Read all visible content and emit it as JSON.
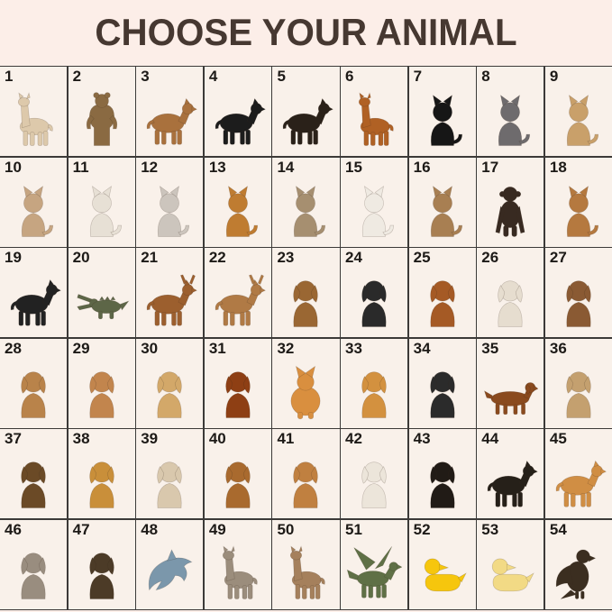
{
  "title": "CHOOSE YOUR ANIMAL",
  "colors": {
    "page_background": "#fceee8",
    "cell_background": "#f9f1ea",
    "grid_line": "#3c3a38",
    "number_text": "#1d1a17",
    "title_text": "#463831"
  },
  "grid": {
    "columns": 9,
    "rows": 6,
    "cell_count": 54
  },
  "cells": [
    {
      "number": 1,
      "animal": "alpaca",
      "icon": "alpaca-icon",
      "shape": "llama",
      "color": "#ddc9ab"
    },
    {
      "number": 2,
      "animal": "standing brown bear",
      "icon": "standing-bear-icon",
      "shape": "bearstand",
      "color": "#8a6a42"
    },
    {
      "number": 3,
      "animal": "brown bear",
      "icon": "brown-bear-icon",
      "shape": "quadruped",
      "color": "#a9713d"
    },
    {
      "number": 4,
      "animal": "black panther",
      "icon": "black-panther-icon",
      "shape": "quadruped",
      "color": "#1c1c1c"
    },
    {
      "number": 5,
      "animal": "water buffalo",
      "icon": "buffalo-icon",
      "shape": "quadruped",
      "color": "#2a2119"
    },
    {
      "number": 6,
      "animal": "camel",
      "icon": "camel-icon",
      "shape": "llama",
      "color": "#b06124"
    },
    {
      "number": 7,
      "animal": "black cat",
      "icon": "black-cat-icon",
      "shape": "catsit",
      "color": "#161616"
    },
    {
      "number": 8,
      "animal": "gray british shorthair cat",
      "icon": "gray-cat-icon",
      "shape": "catsit",
      "color": "#6e6b6d"
    },
    {
      "number": 9,
      "animal": "calico cat",
      "icon": "calico-cat-icon",
      "shape": "catsit",
      "color": "#c9a06a"
    },
    {
      "number": 10,
      "animal": "brown and white cat",
      "icon": "brown-white-cat-icon",
      "shape": "catsit",
      "color": "#c6a581"
    },
    {
      "number": 11,
      "animal": "white persian cat",
      "icon": "white-persian-cat-icon",
      "shape": "catsit",
      "color": "#e7e0d5"
    },
    {
      "number": 12,
      "animal": "silver persian cat",
      "icon": "silver-persian-cat-icon",
      "shape": "catsit",
      "color": "#ccc5bd"
    },
    {
      "number": 13,
      "animal": "orange persian cat",
      "icon": "orange-persian-cat-icon",
      "shape": "catsit",
      "color": "#bf7c31"
    },
    {
      "number": 14,
      "animal": "gray tabby cat",
      "icon": "tabby-cat-icon",
      "shape": "catsit",
      "color": "#a68f70"
    },
    {
      "number": 15,
      "animal": "white cat",
      "icon": "white-cat-icon",
      "shape": "catsit",
      "color": "#efeae2"
    },
    {
      "number": 16,
      "animal": "ragdoll cat",
      "icon": "ragdoll-cat-icon",
      "shape": "catsit",
      "color": "#a87f52"
    },
    {
      "number": 17,
      "animal": "chimpanzee",
      "icon": "chimpanzee-icon",
      "shape": "monkey",
      "color": "#382a21"
    },
    {
      "number": 18,
      "animal": "cougar",
      "icon": "cougar-icon",
      "shape": "catsit",
      "color": "#b5793f"
    },
    {
      "number": 19,
      "animal": "cow",
      "icon": "cow-icon",
      "shape": "quadruped",
      "color": "#222222"
    },
    {
      "number": 20,
      "animal": "crocodile",
      "icon": "crocodile-icon",
      "shape": "croc",
      "color": "#5d6647"
    },
    {
      "number": 21,
      "animal": "reindeer with santa hat",
      "icon": "reindeer-icon",
      "shape": "deer",
      "color": "#9c5f2e"
    },
    {
      "number": 22,
      "animal": "gazelle",
      "icon": "gazelle-icon",
      "shape": "deer",
      "color": "#b07a45"
    },
    {
      "number": 23,
      "animal": "beagle",
      "icon": "beagle-icon",
      "shape": "dogsit",
      "color": "#9a6733"
    },
    {
      "number": 24,
      "animal": "border collie",
      "icon": "border-collie-icon",
      "shape": "dogsit",
      "color": "#2a2a2a"
    },
    {
      "number": 25,
      "animal": "boxer dog",
      "icon": "boxer-dog-icon",
      "shape": "dogsit",
      "color": "#a55a25"
    },
    {
      "number": 26,
      "animal": "white english bulldog",
      "icon": "white-bulldog-icon",
      "shape": "dogsit",
      "color": "#e6ddcf"
    },
    {
      "number": 27,
      "animal": "brindle english bulldog",
      "icon": "brindle-bulldog-icon",
      "shape": "dogsit",
      "color": "#8a5a33"
    },
    {
      "number": 28,
      "animal": "bullmastiff",
      "icon": "bullmastiff-icon",
      "shape": "dogsit",
      "color": "#b9834a"
    },
    {
      "number": 29,
      "animal": "bulldog puppy",
      "icon": "bulldog-puppy-icon",
      "shape": "dogsit",
      "color": "#c2854d"
    },
    {
      "number": 30,
      "animal": "chihuahua",
      "icon": "chihuahua-icon",
      "shape": "dogsit",
      "color": "#d3a869"
    },
    {
      "number": 31,
      "animal": "cocker spaniel",
      "icon": "cocker-spaniel-icon",
      "shape": "dogsit",
      "color": "#8e3f14"
    },
    {
      "number": 32,
      "animal": "corgi rear view",
      "icon": "corgi-rear-icon",
      "shape": "dogrear",
      "color": "#d98f3f"
    },
    {
      "number": 33,
      "animal": "corgi",
      "icon": "corgi-icon",
      "shape": "dogsit",
      "color": "#d3913f"
    },
    {
      "number": 34,
      "animal": "tricolor corgi",
      "icon": "tricolor-corgi-icon",
      "shape": "dogsit",
      "color": "#2b2b2b"
    },
    {
      "number": 35,
      "animal": "dachshund",
      "icon": "dachshund-icon",
      "shape": "dachshund",
      "color": "#8a4a1e"
    },
    {
      "number": 36,
      "animal": "french bulldog",
      "icon": "french-bulldog-icon",
      "shape": "dogsit",
      "color": "#c4a06f"
    },
    {
      "number": 37,
      "animal": "german shepherd",
      "icon": "german-shepherd-icon",
      "shape": "dogsit",
      "color": "#6b4a26"
    },
    {
      "number": 38,
      "animal": "golden retriever",
      "icon": "golden-retriever-icon",
      "shape": "dogsit",
      "color": "#c98f3a"
    },
    {
      "number": 39,
      "animal": "jack russell terrier",
      "icon": "jack-russell-icon",
      "shape": "dogsit",
      "color": "#d9c8ad"
    },
    {
      "number": 40,
      "animal": "goldendoodle",
      "icon": "goldendoodle-icon",
      "shape": "dogsit",
      "color": "#a96a2e"
    },
    {
      "number": 41,
      "animal": "apricot poodle",
      "icon": "apricot-poodle-icon",
      "shape": "dogsit",
      "color": "#c08040"
    },
    {
      "number": 42,
      "animal": "white poodle",
      "icon": "white-poodle-icon",
      "shape": "dogsit",
      "color": "#ece5da"
    },
    {
      "number": 43,
      "animal": "rottweiler",
      "icon": "rottweiler-icon",
      "shape": "dogsit",
      "color": "#211b16"
    },
    {
      "number": 44,
      "animal": "black and tan shiba inu",
      "icon": "black-shiba-icon",
      "shape": "quadruped",
      "color": "#262019"
    },
    {
      "number": 45,
      "animal": "red shiba inu",
      "icon": "red-shiba-icon",
      "shape": "quadruped",
      "color": "#d08e44"
    },
    {
      "number": 46,
      "animal": "weimaraner",
      "icon": "weimaraner-icon",
      "shape": "dogsit",
      "color": "#998d7f"
    },
    {
      "number": 47,
      "animal": "yorkshire terrier",
      "icon": "yorkshire-terrier-icon",
      "shape": "dogsit",
      "color": "#4c3b27"
    },
    {
      "number": 48,
      "animal": "dolphin",
      "icon": "dolphin-icon",
      "shape": "dolphin",
      "color": "#7b97ab"
    },
    {
      "number": 49,
      "animal": "gray donkey",
      "icon": "gray-donkey-icon",
      "shape": "llama",
      "color": "#9b8d7c"
    },
    {
      "number": 50,
      "animal": "brown donkey",
      "icon": "brown-donkey-icon",
      "shape": "llama",
      "color": "#a5805c"
    },
    {
      "number": 51,
      "animal": "green dragon",
      "icon": "dragon-icon",
      "shape": "dragon",
      "color": "#5f7046"
    },
    {
      "number": 52,
      "animal": "yellow rubber duck",
      "icon": "rubber-duck-icon",
      "shape": "duck",
      "color": "#f6c60d"
    },
    {
      "number": 53,
      "animal": "duckling",
      "icon": "duckling-icon",
      "shape": "duck",
      "color": "#f2da85"
    },
    {
      "number": 54,
      "animal": "bald eagle",
      "icon": "bald-eagle-icon",
      "shape": "bird",
      "color": "#3b2e20"
    }
  ]
}
